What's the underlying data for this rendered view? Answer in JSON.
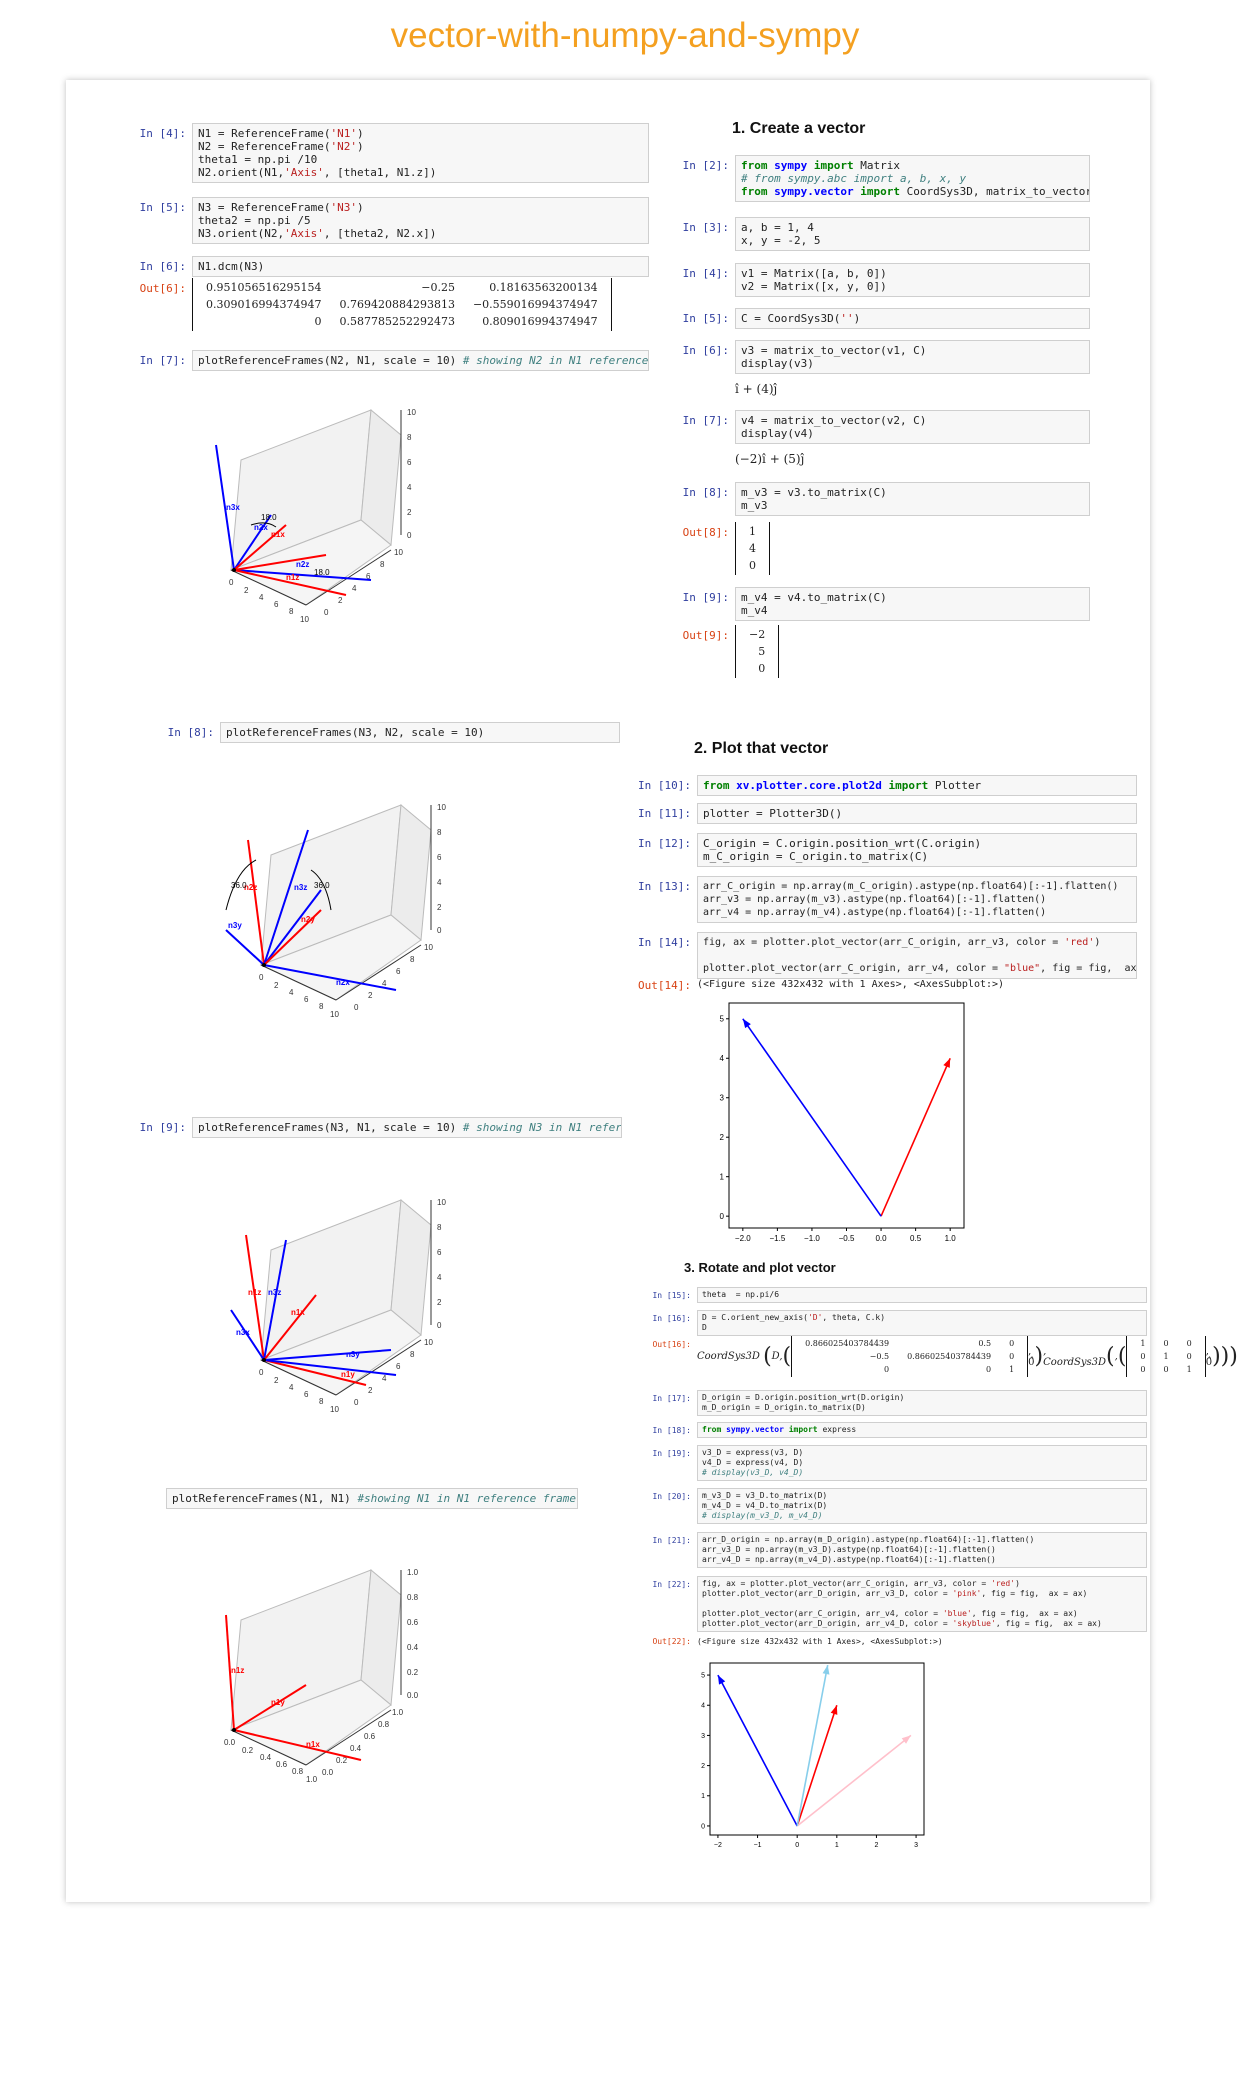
{
  "page_title": "vector-with-numpy-and-sympy",
  "headings": {
    "h1": "1. Create a vector",
    "h2": "2. Plot that vector",
    "h3": "3. Rotate and plot vector"
  },
  "left": {
    "c4": {
      "prompt": "In [4]:"
    },
    "c5": {
      "prompt": "In [5]:"
    },
    "c6": {
      "prompt": "In [6]:",
      "code": "N1.dcm(N3)",
      "out_prompt": "Out[6]:",
      "matrix": [
        [
          "0.951056516295154",
          "−0.25",
          "0.18163563200134"
        ],
        [
          "0.309016994374947",
          "0.769420884293813",
          "−0.559016994374947"
        ],
        [
          "0",
          "0.587785252292473",
          "0.809016994374947"
        ]
      ]
    },
    "c7": {
      "prompt": "In [7]:"
    },
    "c8": {
      "prompt": "In [8]:",
      "code": "plotReferenceFrames(N3, N2, scale = 10)"
    },
    "c9": {
      "prompt": "In [9]:"
    },
    "c10": {
      "code": "plotReferenceFrames(N1, N1)",
      "comment": "#showing N1 in N1 reference frame"
    },
    "plot1": {
      "labels": [
        "n3x",
        "n2x",
        "n1x",
        "n2z",
        "n1z",
        "18.0",
        "18.0"
      ],
      "ticks_z": [
        "10",
        "8",
        "6",
        "4",
        "2",
        "0"
      ],
      "ticks_x": [
        "0",
        "2",
        "4",
        "6",
        "8",
        "10"
      ],
      "ticks_y": [
        "10",
        "8",
        "6",
        "4",
        "2",
        "0"
      ]
    },
    "plot2": {
      "labels": [
        "n2z",
        "n3z",
        "n3y",
        "n2x",
        "n2y",
        "36.0",
        "36.0"
      ],
      "ticks_z": [
        "10",
        "8",
        "6",
        "4",
        "2",
        "0"
      ],
      "ticks_x": [
        "0",
        "2",
        "4",
        "6",
        "8",
        "10"
      ],
      "ticks_y": [
        "10",
        "8",
        "6",
        "4",
        "2",
        "0"
      ]
    },
    "plot3": {
      "labels": [
        "n1z",
        "n3z",
        "n3x",
        "n1x",
        "n3y",
        "n1y"
      ],
      "ticks_z": [
        "10",
        "8",
        "6",
        "4",
        "2",
        "0"
      ],
      "ticks_x": [
        "0",
        "2",
        "4",
        "6",
        "8",
        "10"
      ],
      "ticks_y": [
        "10",
        "8",
        "6",
        "4",
        "2",
        "0"
      ]
    },
    "plot4": {
      "labels": [
        "n1z",
        "n1y",
        "n1x"
      ],
      "ticks_z": [
        "1.0",
        "0.8",
        "0.6",
        "0.4",
        "0.2",
        "0.0"
      ],
      "ticks_x": [
        "0.0",
        "0.2",
        "0.4",
        "0.6",
        "0.8",
        "1.0"
      ],
      "ticks_y": [
        "1.0",
        "0.8",
        "0.6",
        "0.4",
        "0.2",
        "0.0"
      ]
    }
  },
  "right": {
    "c2": {
      "prompt": "In [2]:"
    },
    "c3": {
      "prompt": "In [3]:",
      "code": "a, b = 1, 4\nx, y = -2, 5"
    },
    "c4": {
      "prompt": "In [4]:",
      "code": "v1 = Matrix([a, b, 0])\nv2 = Matrix([x, y, 0])"
    },
    "c5": {
      "prompt": "In [5]:"
    },
    "c6": {
      "prompt": "In [6]:",
      "code": "v3 = matrix_to_vector(v1, C)\ndisplay(v3)",
      "out": "î + (4)ĵ"
    },
    "c7": {
      "prompt": "In [7]:",
      "code": "v4 = matrix_to_vector(v2, C)\ndisplay(v4)",
      "out": "(−2)î + (5)ĵ"
    },
    "c8": {
      "prompt": "In [8]:",
      "code": "m_v3 = v3.to_matrix(C)\nm_v3",
      "out_prompt": "Out[8]:",
      "vec": [
        "1",
        "4",
        "0"
      ]
    },
    "c9": {
      "prompt": "In [9]:",
      "code": "m_v4 = v4.to_matrix(C)\nm_v4",
      "out_prompt": "Out[9]:",
      "vec": [
        "−2",
        "5",
        "0"
      ]
    },
    "c10": {
      "prompt": "In [10]:"
    },
    "c11": {
      "prompt": "In [11]:",
      "code": "plotter = Plotter3D()"
    },
    "c12": {
      "prompt": "In [12]:",
      "code": "C_origin = C.origin.position_wrt(C.origin)\nm_C_origin = C_origin.to_matrix(C)"
    },
    "c13": {
      "prompt": "In [13]:",
      "code": "arr_C_origin = np.array(m_C_origin).astype(np.float64)[:-1].flatten()\narr_v3 = np.array(m_v3).astype(np.float64)[:-1].flatten()\narr_v4 = np.array(m_v4).astype(np.float64)[:-1].flatten()"
    },
    "c14": {
      "prompt": "In [14]:",
      "out_prompt": "Out[14]:",
      "out": "(<Figure size 432x432 with 1 Axes>, <AxesSubplot:>)"
    },
    "c15": {
      "prompt": "In [15]:",
      "code": "theta  = np.pi/6"
    },
    "c16": {
      "prompt": "In [16]:",
      "out_prompt": "Out[16]:"
    },
    "c17": {
      "prompt": "In [17]:",
      "code": "D_origin = D.origin.position_wrt(D.origin)\nm_D_origin = D_origin.to_matrix(D)"
    },
    "c18": {
      "prompt": "In [18]:"
    },
    "c19": {
      "prompt": "In [19]:"
    },
    "c20": {
      "prompt": "In [20]:"
    },
    "c21": {
      "prompt": "In [21]:",
      "code": "arr_D_origin = np.array(m_D_origin).astype(np.float64)[:-1].flatten()\narr_v3_D = np.array(m_v3_D).astype(np.float64)[:-1].flatten()\narr_v4_D = np.array(m_v4_D).astype(np.float64)[:-1].flatten()"
    },
    "c22": {
      "prompt": "In [22]:",
      "out_prompt": "Out[22]:",
      "out": "(<Figure size 432x432 with 1 Axes>, <AxesSubplot:>)"
    }
  },
  "chart_data": [
    {
      "type": "line",
      "title": "",
      "xlabel": "",
      "ylabel": "",
      "xlim": [
        -2.2,
        1.2
      ],
      "ylim": [
        -0.3,
        5.4
      ],
      "xticks": [
        "−2.0",
        "−1.5",
        "−1.0",
        "−0.5",
        "0.0",
        "0.5",
        "1.0"
      ],
      "yticks": [
        "0",
        "1",
        "2",
        "3",
        "4",
        "5"
      ],
      "series": [
        {
          "color": "#ff0000",
          "x": [
            0,
            1
          ],
          "y": [
            0,
            4
          ]
        },
        {
          "color": "#0000ff",
          "x": [
            0,
            -2
          ],
          "y": [
            0,
            5
          ]
        }
      ]
    },
    {
      "type": "line",
      "title": "",
      "xlabel": "",
      "ylabel": "",
      "xlim": [
        -2.2,
        3.2
      ],
      "ylim": [
        -0.3,
        5.4
      ],
      "xticks": [
        "−2",
        "−1",
        "0",
        "1",
        "2",
        "3"
      ],
      "yticks": [
        "0",
        "1",
        "2",
        "3",
        "4",
        "5"
      ],
      "series": [
        {
          "color": "#ff0000",
          "x": [
            0,
            1
          ],
          "y": [
            0,
            4
          ]
        },
        {
          "color": "#ffc0cb",
          "x": [
            0,
            2.87
          ],
          "y": [
            0,
            3
          ]
        },
        {
          "color": "#0000ff",
          "x": [
            0,
            -2
          ],
          "y": [
            0,
            5
          ]
        },
        {
          "color": "#87ceeb",
          "x": [
            0,
            0.77
          ],
          "y": [
            0,
            5.33
          ]
        }
      ]
    }
  ],
  "colors": {
    "title": "#f4a020",
    "prompt_in": "#303f9f",
    "prompt_out": "#d84315"
  }
}
